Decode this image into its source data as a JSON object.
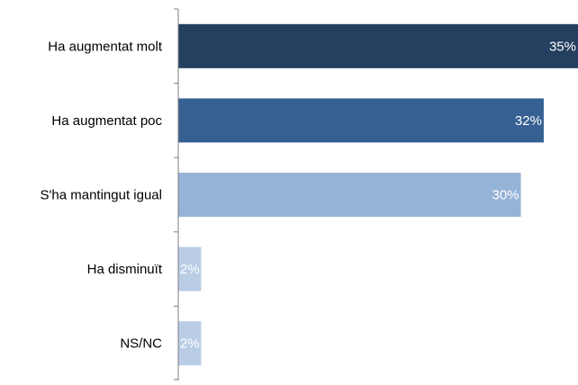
{
  "chart_data": {
    "type": "bar",
    "orientation": "horizontal",
    "categories": [
      "Ha augmentat molt",
      "Ha augmentat poc",
      "S'ha mantingut igual",
      "Ha disminuït",
      "NS/NC"
    ],
    "values": [
      35,
      32,
      30,
      2,
      2
    ],
    "data_labels": [
      "35%",
      "32%",
      "30%",
      "2%",
      "2%"
    ],
    "value_unit": "%",
    "xlim": [
      0,
      35
    ],
    "grid": false,
    "legend": "none",
    "bar_colors": [
      "#243f60",
      "#376092",
      "#95b3d7",
      "#b9cde5",
      "#b9cde5"
    ],
    "data_label_color": "#ffffff",
    "category_label_color": "#000000",
    "axis_color": "#7f7f7f"
  }
}
